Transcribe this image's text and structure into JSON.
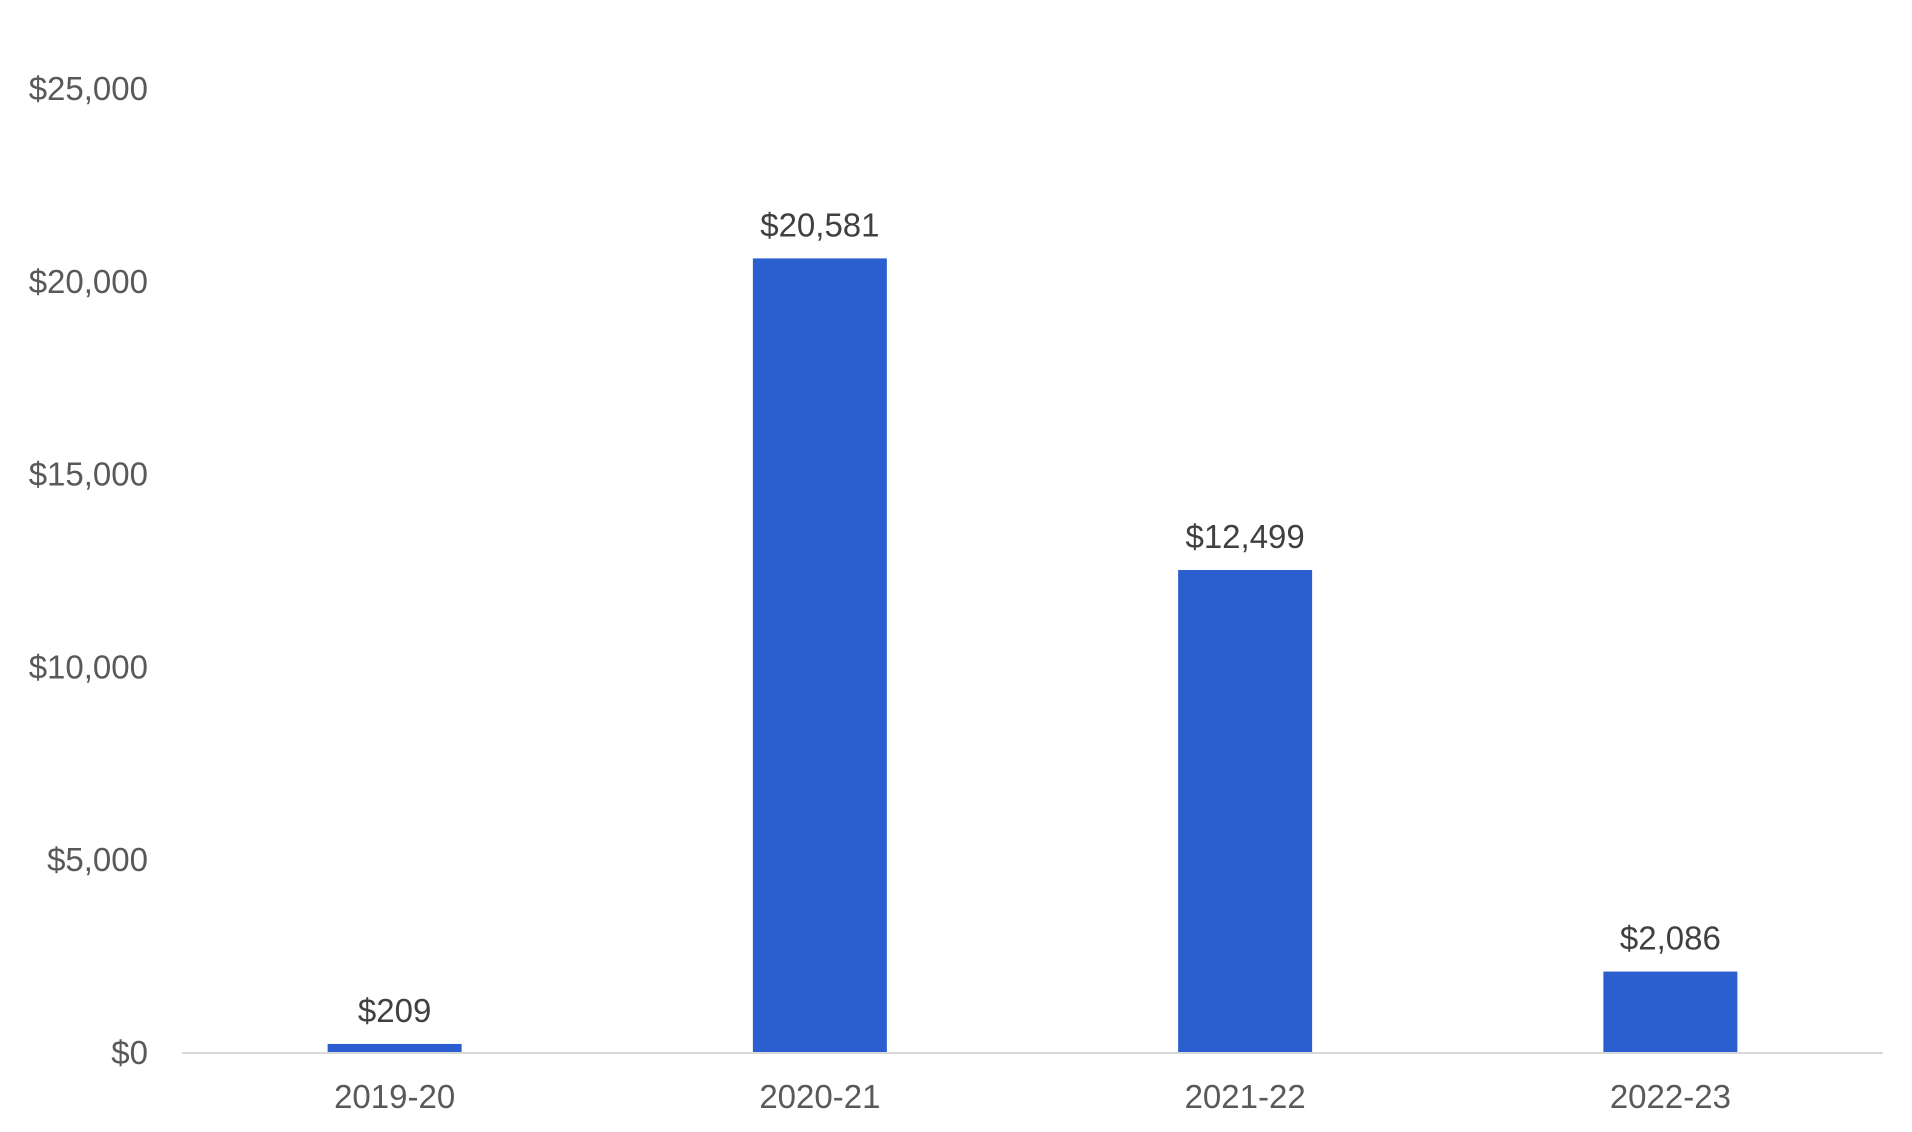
{
  "chart_data": {
    "type": "bar",
    "title": "",
    "xlabel": "",
    "ylabel": "",
    "categories": [
      "2019-20",
      "2020-21",
      "2021-22",
      "2022-23"
    ],
    "values": [
      209,
      20581,
      12499,
      2086
    ],
    "data_labels": [
      "$209",
      "$20,581",
      "$12,499",
      "$2,086"
    ],
    "ylim": [
      0,
      25000
    ],
    "y_ticks": [
      0,
      5000,
      10000,
      15000,
      20000,
      25000
    ],
    "y_tick_labels": [
      "$0",
      "$5,000",
      "$10,000",
      "$15,000",
      "$20,000",
      "$25,000"
    ],
    "grid": false,
    "legend": "none",
    "bar_color": "#2b5fcf",
    "axis_color": "#d9d9d9"
  }
}
